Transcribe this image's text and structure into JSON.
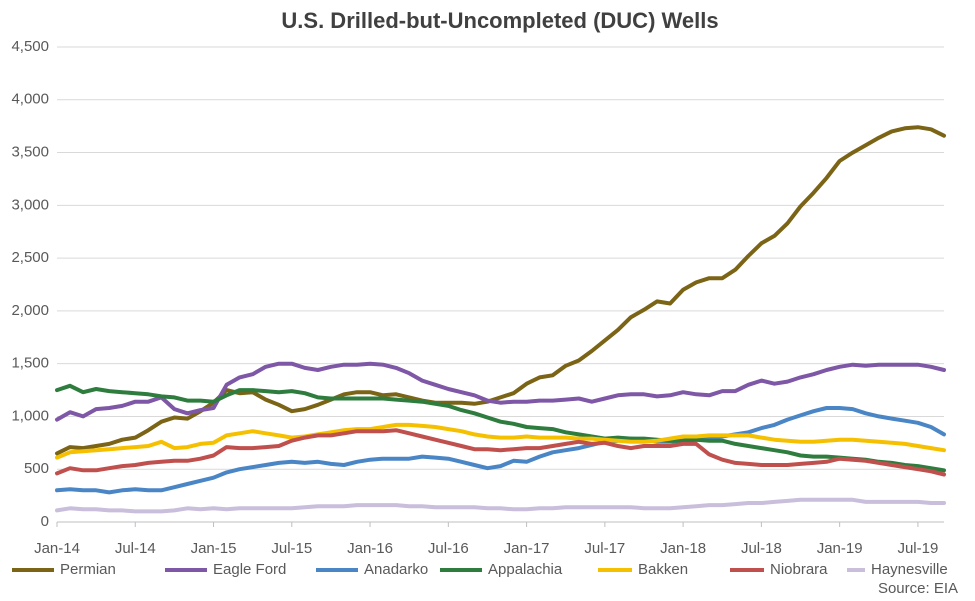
{
  "chart_data": {
    "type": "line",
    "title": "U.S. Drilled-but-Uncompleted (DUC) Wells",
    "source": "Source: EIA",
    "categories": [
      "Jan-14",
      null,
      null,
      null,
      null,
      null,
      "Jul-14",
      null,
      null,
      null,
      null,
      null,
      "Jan-15",
      null,
      null,
      null,
      null,
      null,
      "Jul-15",
      null,
      null,
      null,
      null,
      null,
      "Jan-16",
      null,
      null,
      null,
      null,
      null,
      "Jul-16",
      null,
      null,
      null,
      null,
      null,
      "Jan-17",
      null,
      null,
      null,
      null,
      null,
      "Jul-17",
      null,
      null,
      null,
      null,
      null,
      "Jan-18",
      null,
      null,
      null,
      null,
      null,
      "Jul-18",
      null,
      null,
      null,
      null,
      null,
      "Jan-19",
      null,
      null,
      null,
      null,
      null,
      "Jul-19",
      null,
      null
    ],
    "ylim": [
      0,
      4500
    ],
    "yticks": [
      0,
      500,
      {
        "value": 1000,
        "label": "1,000"
      },
      {
        "value": 1500,
        "label": "1,500"
      },
      {
        "value": 2000,
        "label": "2,000"
      },
      {
        "value": 2500,
        "label": "2,500"
      },
      {
        "value": 3000,
        "label": "3,000"
      },
      {
        "value": 3500,
        "label": "3,500"
      },
      {
        "value": 4000,
        "label": "4,000"
      },
      {
        "value": 4500,
        "label": "4,500"
      }
    ],
    "grid": true,
    "legend": "bottom",
    "series": [
      {
        "name": "Permian",
        "color": "#7b6416",
        "values": [
          650,
          710,
          700,
          720,
          740,
          780,
          800,
          870,
          950,
          990,
          980,
          1050,
          1130,
          1250,
          1220,
          1230,
          1160,
          1110,
          1050,
          1070,
          1110,
          1160,
          1210,
          1230,
          1230,
          1200,
          1210,
          1180,
          1150,
          1130,
          1130,
          1130,
          1120,
          1140,
          1180,
          1220,
          1310,
          1370,
          1390,
          1480,
          1530,
          1620,
          1720,
          1820,
          1940,
          2010,
          2090,
          2070,
          2200,
          2270,
          2310,
          2310,
          2390,
          2520,
          2640,
          2710,
          2830,
          2990,
          3120,
          3260,
          3420,
          3500,
          3570,
          3640,
          3700,
          3730,
          3740,
          3720,
          3660
        ]
      },
      {
        "name": "Eagle Ford",
        "color": "#7e57a6",
        "values": [
          970,
          1040,
          1000,
          1070,
          1080,
          1100,
          1140,
          1140,
          1180,
          1070,
          1030,
          1060,
          1080,
          1300,
          1370,
          1400,
          1470,
          1500,
          1500,
          1460,
          1440,
          1470,
          1490,
          1490,
          1500,
          1490,
          1460,
          1410,
          1340,
          1300,
          1260,
          1230,
          1200,
          1150,
          1130,
          1140,
          1140,
          1150,
          1150,
          1160,
          1170,
          1140,
          1170,
          1200,
          1210,
          1210,
          1190,
          1200,
          1230,
          1210,
          1200,
          1240,
          1240,
          1300,
          1340,
          1310,
          1330,
          1370,
          1400,
          1440,
          1470,
          1490,
          1480,
          1490,
          1490,
          1490,
          1490,
          1470,
          1440
        ]
      },
      {
        "name": "Anadarko",
        "color": "#4a86c5",
        "values": [
          300,
          310,
          300,
          300,
          280,
          300,
          310,
          300,
          300,
          330,
          360,
          390,
          420,
          470,
          500,
          520,
          540,
          560,
          570,
          560,
          570,
          550,
          540,
          570,
          590,
          600,
          600,
          600,
          620,
          610,
          600,
          570,
          540,
          510,
          530,
          580,
          570,
          620,
          660,
          680,
          700,
          730,
          760,
          770,
          790,
          780,
          760,
          760,
          770,
          780,
          790,
          810,
          830,
          850,
          890,
          920,
          970,
          1010,
          1050,
          1080,
          1080,
          1070,
          1030,
          1000,
          980,
          960,
          940,
          900,
          830
        ]
      },
      {
        "name": "Appalachia",
        "color": "#2e7d3e",
        "values": [
          1250,
          1290,
          1230,
          1260,
          1240,
          1230,
          1220,
          1210,
          1190,
          1180,
          1150,
          1150,
          1140,
          1200,
          1250,
          1250,
          1240,
          1230,
          1240,
          1220,
          1180,
          1170,
          1170,
          1170,
          1170,
          1170,
          1160,
          1150,
          1140,
          1120,
          1100,
          1060,
          1030,
          990,
          950,
          930,
          900,
          890,
          880,
          850,
          830,
          810,
          790,
          800,
          790,
          790,
          780,
          770,
          770,
          780,
          770,
          770,
          740,
          720,
          700,
          680,
          660,
          630,
          620,
          620,
          610,
          600,
          590,
          570,
          560,
          540,
          530,
          510,
          490
        ]
      },
      {
        "name": "Bakken",
        "color": "#f5c000",
        "values": [
          610,
          660,
          670,
          680,
          690,
          700,
          710,
          720,
          760,
          700,
          710,
          740,
          750,
          820,
          840,
          860,
          840,
          820,
          800,
          810,
          830,
          850,
          870,
          880,
          880,
          900,
          920,
          920,
          910,
          900,
          880,
          860,
          830,
          810,
          800,
          800,
          810,
          800,
          800,
          800,
          790,
          790,
          780,
          770,
          760,
          760,
          770,
          790,
          810,
          810,
          820,
          820,
          820,
          820,
          800,
          780,
          770,
          760,
          760,
          770,
          780,
          780,
          770,
          760,
          750,
          740,
          720,
          700,
          680
        ]
      },
      {
        "name": "Niobrara",
        "color": "#c0504d",
        "values": [
          460,
          510,
          490,
          490,
          510,
          530,
          540,
          560,
          570,
          580,
          580,
          600,
          630,
          710,
          700,
          700,
          710,
          720,
          770,
          800,
          820,
          820,
          840,
          860,
          860,
          860,
          870,
          840,
          810,
          780,
          750,
          720,
          690,
          690,
          680,
          690,
          700,
          700,
          720,
          740,
          760,
          740,
          750,
          720,
          700,
          720,
          720,
          720,
          740,
          740,
          640,
          590,
          560,
          550,
          540,
          540,
          540,
          550,
          560,
          570,
          600,
          590,
          580,
          560,
          540,
          520,
          500,
          480,
          450
        ]
      },
      {
        "name": "Haynesville",
        "color": "#c9bedb",
        "values": [
          110,
          130,
          120,
          120,
          110,
          110,
          100,
          100,
          100,
          110,
          130,
          120,
          130,
          120,
          130,
          130,
          130,
          130,
          130,
          140,
          150,
          150,
          150,
          160,
          160,
          160,
          160,
          150,
          150,
          140,
          140,
          140,
          140,
          130,
          130,
          120,
          120,
          130,
          130,
          140,
          140,
          140,
          140,
          140,
          140,
          130,
          130,
          130,
          140,
          150,
          160,
          160,
          170,
          180,
          180,
          190,
          200,
          210,
          210,
          210,
          210,
          210,
          190,
          190,
          190,
          190,
          190,
          180,
          180
        ]
      }
    ]
  }
}
